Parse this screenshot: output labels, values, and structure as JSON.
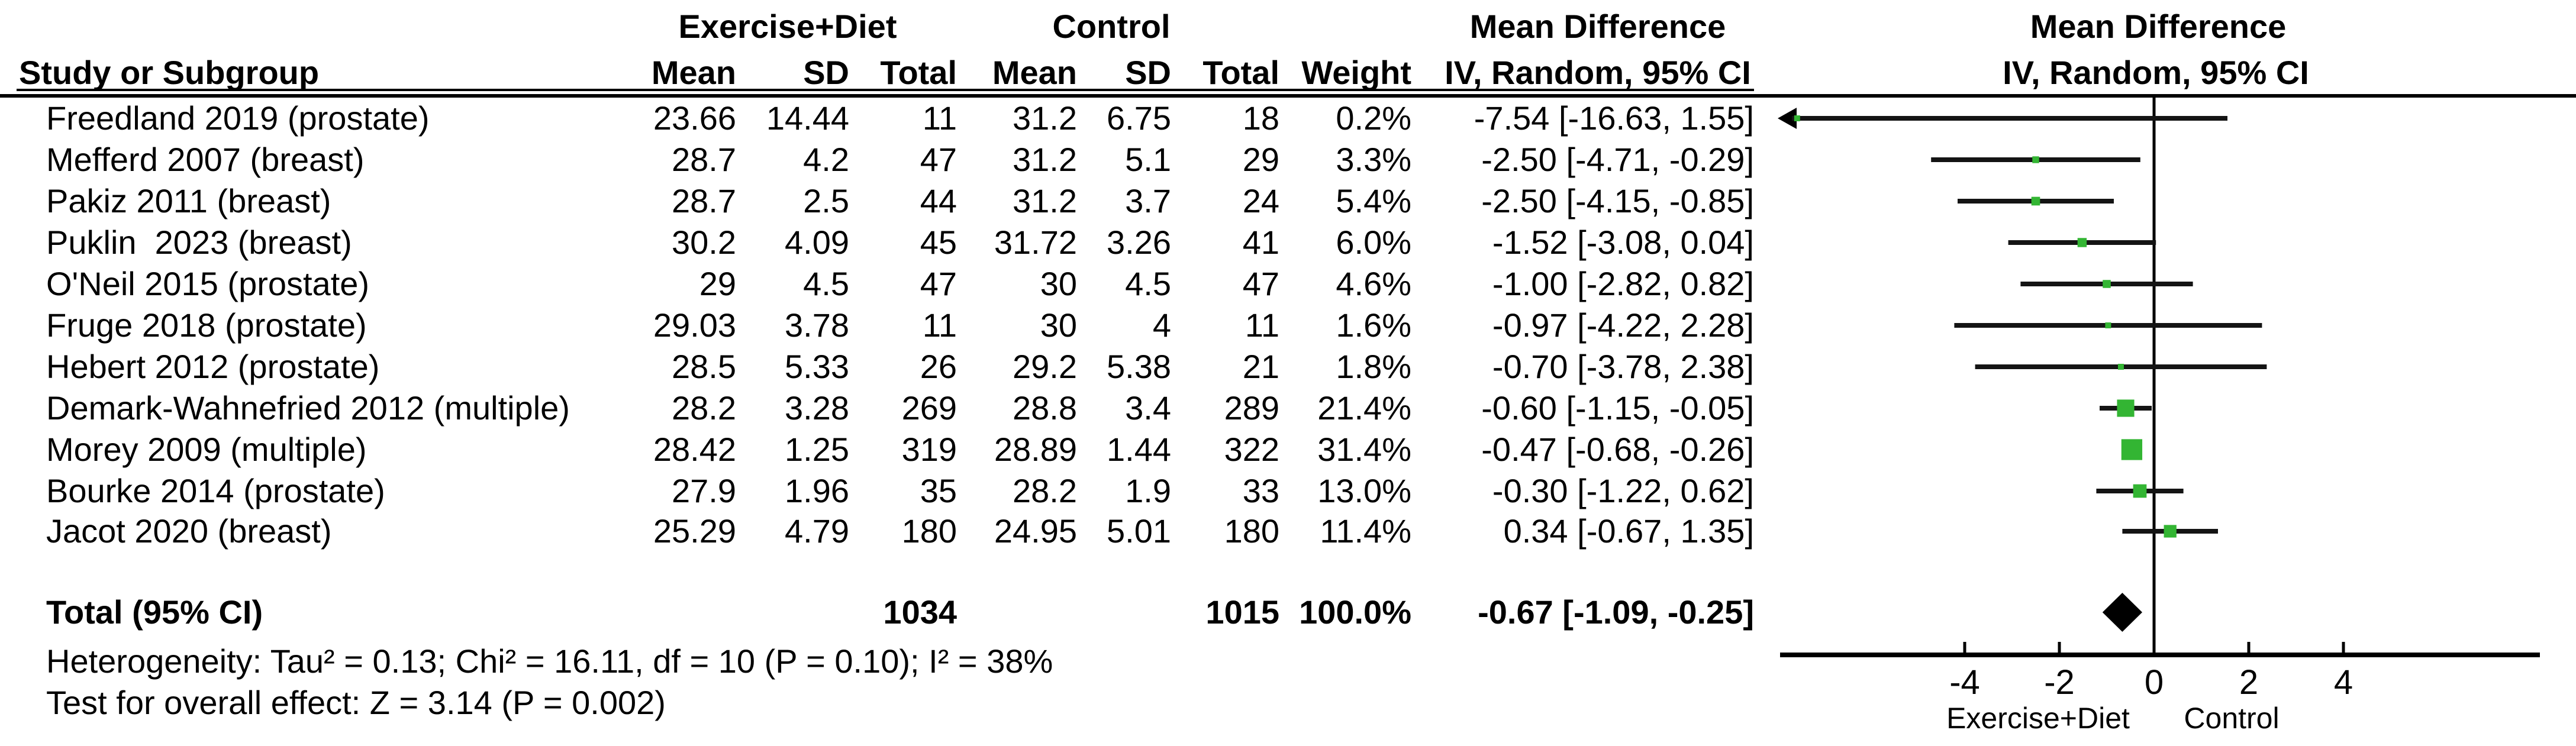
{
  "header": {
    "group_exercise": "Exercise+Diet",
    "group_control": "Control",
    "md_title_text_col": "Mean Difference",
    "md_title_plot_col": "Mean Difference",
    "study_col": "Study or Subgroup",
    "mean": "Mean",
    "sd": "SD",
    "total": "Total",
    "weight": "Weight",
    "ci_method": "IV, Random, 95% CI",
    "ci_method_plot": "IV, Random, 95% CI"
  },
  "rows": [
    {
      "study": "Freedland 2019 (prostate)",
      "e_mean": "23.66",
      "e_sd": "14.44",
      "e_total": "11",
      "c_mean": "31.2",
      "c_sd": "6.75",
      "c_total": "18",
      "weight": "0.2%",
      "md_ci": "-7.54 [-16.63, 1.55]"
    },
    {
      "study": "Mefferd 2007 (breast)",
      "e_mean": "28.7",
      "e_sd": "4.2",
      "e_total": "47",
      "c_mean": "31.2",
      "c_sd": "5.1",
      "c_total": "29",
      "weight": "3.3%",
      "md_ci": "-2.50 [-4.71, -0.29]"
    },
    {
      "study": "Pakiz 2011 (breast)",
      "e_mean": "28.7",
      "e_sd": "2.5",
      "e_total": "44",
      "c_mean": "31.2",
      "c_sd": "3.7",
      "c_total": "24",
      "weight": "5.4%",
      "md_ci": "-2.50 [-4.15, -0.85]"
    },
    {
      "study": "Puklin  2023 (breast)",
      "e_mean": "30.2",
      "e_sd": "4.09",
      "e_total": "45",
      "c_mean": "31.72",
      "c_sd": "3.26",
      "c_total": "41",
      "weight": "6.0%",
      "md_ci": "-1.52 [-3.08, 0.04]"
    },
    {
      "study": "O'Neil 2015 (prostate)",
      "e_mean": "29",
      "e_sd": "4.5",
      "e_total": "47",
      "c_mean": "30",
      "c_sd": "4.5",
      "c_total": "47",
      "weight": "4.6%",
      "md_ci": "-1.00 [-2.82, 0.82]"
    },
    {
      "study": "Fruge 2018 (prostate)",
      "e_mean": "29.03",
      "e_sd": "3.78",
      "e_total": "11",
      "c_mean": "30",
      "c_sd": "4",
      "c_total": "11",
      "weight": "1.6%",
      "md_ci": "-0.97 [-4.22, 2.28]"
    },
    {
      "study": "Hebert 2012 (prostate)",
      "e_mean": "28.5",
      "e_sd": "5.33",
      "e_total": "26",
      "c_mean": "29.2",
      "c_sd": "5.38",
      "c_total": "21",
      "weight": "1.8%",
      "md_ci": "-0.70 [-3.78, 2.38]"
    },
    {
      "study": "Demark-Wahnefried 2012 (multiple)",
      "e_mean": "28.2",
      "e_sd": "3.28",
      "e_total": "269",
      "c_mean": "28.8",
      "c_sd": "3.4",
      "c_total": "289",
      "weight": "21.4%",
      "md_ci": "-0.60 [-1.15, -0.05]"
    },
    {
      "study": "Morey 2009 (multiple)",
      "e_mean": "28.42",
      "e_sd": "1.25",
      "e_total": "319",
      "c_mean": "28.89",
      "c_sd": "1.44",
      "c_total": "322",
      "weight": "31.4%",
      "md_ci": "-0.47 [-0.68, -0.26]"
    },
    {
      "study": "Bourke 2014 (prostate)",
      "e_mean": "27.9",
      "e_sd": "1.96",
      "e_total": "35",
      "c_mean": "28.2",
      "c_sd": "1.9",
      "c_total": "33",
      "weight": "13.0%",
      "md_ci": "-0.30 [-1.22, 0.62]"
    },
    {
      "study": "Jacot 2020 (breast)",
      "e_mean": "25.29",
      "e_sd": "4.79",
      "e_total": "180",
      "c_mean": "24.95",
      "c_sd": "5.01",
      "c_total": "180",
      "weight": "11.4%",
      "md_ci": "0.34 [-0.67, 1.35]"
    }
  ],
  "total_row": {
    "label": "Total (95% CI)",
    "e_total": "1034",
    "c_total": "1015",
    "weight": "100.0%",
    "md_ci": "-0.67 [-1.09, -0.25]"
  },
  "footer": {
    "heterogeneity": "Heterogeneity: Tau² = 0.13; Chi² = 16.11, df = 10 (P = 0.10); I² = 38%",
    "overall_effect": "Test for overall effect: Z = 3.14 (P = 0.002)"
  },
  "chart_data": {
    "type": "forest",
    "effect_measure": "Mean Difference, IV, Random, 95% CI",
    "studies": [
      {
        "name": "Freedland 2019 (prostate)",
        "md": -7.54,
        "lo": -16.63,
        "hi": 1.55,
        "weight": 0.2
      },
      {
        "name": "Mefferd 2007 (breast)",
        "md": -2.5,
        "lo": -4.71,
        "hi": -0.29,
        "weight": 3.3
      },
      {
        "name": "Pakiz 2011 (breast)",
        "md": -2.5,
        "lo": -4.15,
        "hi": -0.85,
        "weight": 5.4
      },
      {
        "name": "Puklin 2023 (breast)",
        "md": -1.52,
        "lo": -3.08,
        "hi": 0.04,
        "weight": 6.0
      },
      {
        "name": "O'Neil 2015 (prostate)",
        "md": -1.0,
        "lo": -2.82,
        "hi": 0.82,
        "weight": 4.6
      },
      {
        "name": "Fruge 2018 (prostate)",
        "md": -0.97,
        "lo": -4.22,
        "hi": 2.28,
        "weight": 1.6
      },
      {
        "name": "Hebert 2012 (prostate)",
        "md": -0.7,
        "lo": -3.78,
        "hi": 2.38,
        "weight": 1.8
      },
      {
        "name": "Demark-Wahnefried 2012 (multiple)",
        "md": -0.6,
        "lo": -1.15,
        "hi": -0.05,
        "weight": 21.4
      },
      {
        "name": "Morey 2009 (multiple)",
        "md": -0.47,
        "lo": -0.68,
        "hi": -0.26,
        "weight": 31.4
      },
      {
        "name": "Bourke 2014 (prostate)",
        "md": -0.3,
        "lo": -1.22,
        "hi": 0.62,
        "weight": 13.0
      },
      {
        "name": "Jacot 2020 (breast)",
        "md": 0.34,
        "lo": -0.67,
        "hi": 1.35,
        "weight": 11.4
      }
    ],
    "total": {
      "md": -0.67,
      "lo": -1.09,
      "hi": -0.25
    },
    "axis": {
      "ticks": [
        -4,
        -2,
        0,
        2,
        4
      ],
      "xmin": -7.9,
      "xmax": 8.1,
      "left_label": "Exercise+Diet",
      "right_label": "Control"
    },
    "marker_color": "#33b533",
    "line_color": "#141414"
  }
}
